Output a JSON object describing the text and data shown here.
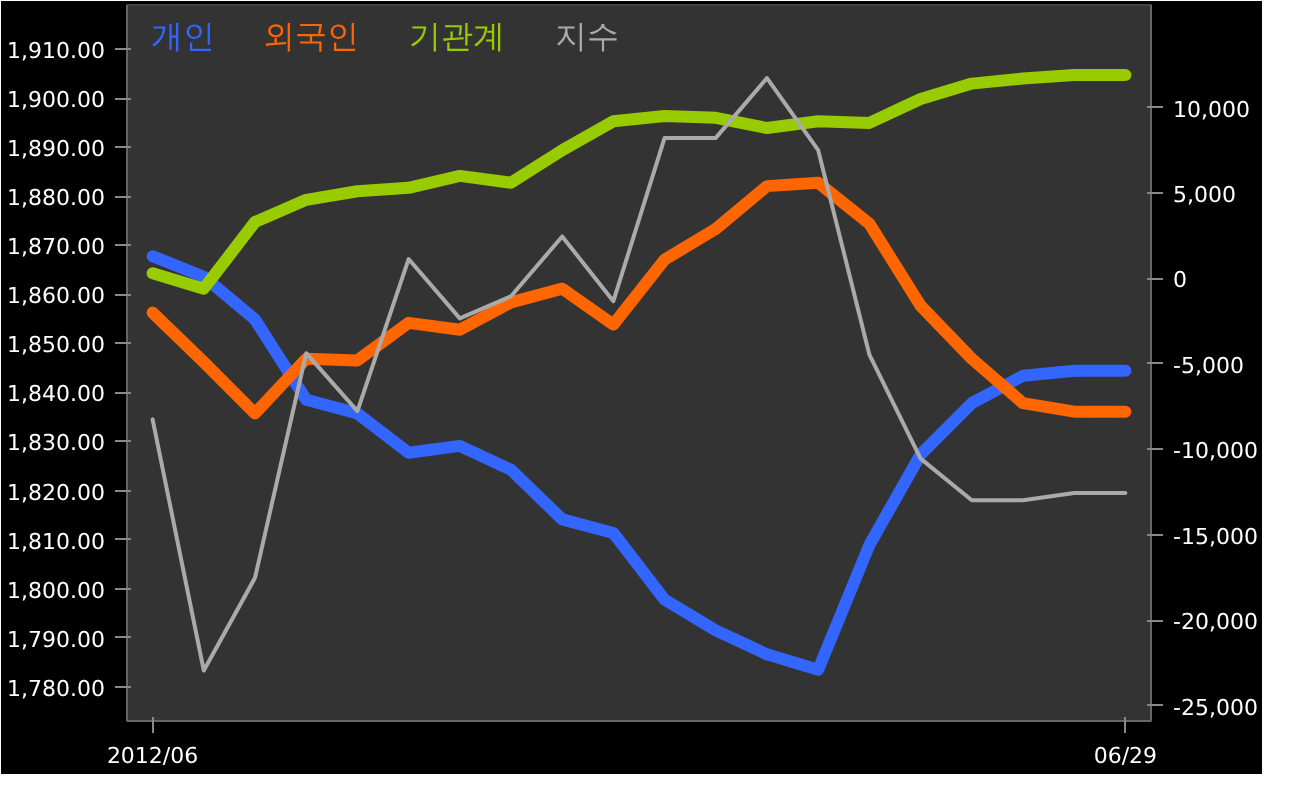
{
  "chart_data": {
    "type": "line",
    "categories": [
      "2012/06",
      null,
      null,
      null,
      null,
      null,
      null,
      null,
      null,
      null,
      null,
      null,
      null,
      null,
      null,
      null,
      null,
      null,
      null,
      "06/29"
    ],
    "series": [
      {
        "name": "개인",
        "color": "#3366ff",
        "axis": "y2",
        "values": [
          1300,
          100,
          -2400,
          -7100,
          -7900,
          -10200,
          -9800,
          -11200,
          -14100,
          -14900,
          -18800,
          -20600,
          -22000,
          -22900,
          -15600,
          -10300,
          -7300,
          -5700,
          -5400,
          -5400
        ]
      },
      {
        "name": "외국인",
        "color": "#ff6600",
        "axis": "y2",
        "values": [
          -2000,
          -4900,
          -7900,
          -4700,
          -4800,
          -2600,
          -3000,
          -1400,
          -600,
          -2700,
          1100,
          2900,
          5400,
          5600,
          3200,
          -1600,
          -4700,
          -7300,
          -7800,
          -7800
        ]
      },
      {
        "name": "기관계",
        "color": "#99cc00",
        "axis": "y2",
        "values": [
          300,
          -600,
          3300,
          4600,
          5100,
          5300,
          6000,
          5600,
          7500,
          9200,
          9500,
          9400,
          8800,
          9200,
          9100,
          10500,
          11400,
          11700,
          11900,
          11900
        ]
      },
      {
        "name": "지수",
        "color": "#aaaaaa",
        "axis": "y",
        "values": [
          1834.5,
          1783.3,
          1802.2,
          1848,
          1836.2,
          1867.2,
          1855.1,
          1859.6,
          1871.8,
          1858.6,
          1891.9,
          1891.9,
          1904.1,
          1889.4,
          1847.7,
          1826.5,
          1818,
          1818,
          1819.5,
          1819.5
        ]
      }
    ],
    "ylim": [
      1773,
      1919
    ],
    "yticks": [
      {
        "value": 1780,
        "label": "1,780.00"
      },
      {
        "value": 1790,
        "label": "1,790.00"
      },
      {
        "value": 1800,
        "label": "1,800.00"
      },
      {
        "value": 1810,
        "label": "1,810.00"
      },
      {
        "value": 1820,
        "label": "1,820.00"
      },
      {
        "value": 1830,
        "label": "1,830.00"
      },
      {
        "value": 1840,
        "label": "1,840.00"
      },
      {
        "value": 1850,
        "label": "1,850.00"
      },
      {
        "value": 1860,
        "label": "1,860.00"
      },
      {
        "value": 1870,
        "label": "1,870.00"
      },
      {
        "value": 1880,
        "label": "1,880.00"
      },
      {
        "value": 1890,
        "label": "1,890.00"
      },
      {
        "value": 1900,
        "label": "1,900.00"
      },
      {
        "value": 1910,
        "label": "1,910.00"
      }
    ],
    "y2lim": [
      -25900,
      16000
    ],
    "y2ticks": [
      {
        "value": -25000,
        "label": "-25,000"
      },
      {
        "value": -20000,
        "label": "-20,000"
      },
      {
        "value": -15000,
        "label": "-15,000"
      },
      {
        "value": -10000,
        "label": "-10,000"
      },
      {
        "value": -5000,
        "label": "-5,000"
      },
      {
        "value": 0,
        "label": "0"
      },
      {
        "value": 5000,
        "label": "5,000"
      },
      {
        "value": 10000,
        "label": "10,000"
      }
    ],
    "legend": "top left",
    "grid": false,
    "marker": "none",
    "line_style": "solid"
  }
}
